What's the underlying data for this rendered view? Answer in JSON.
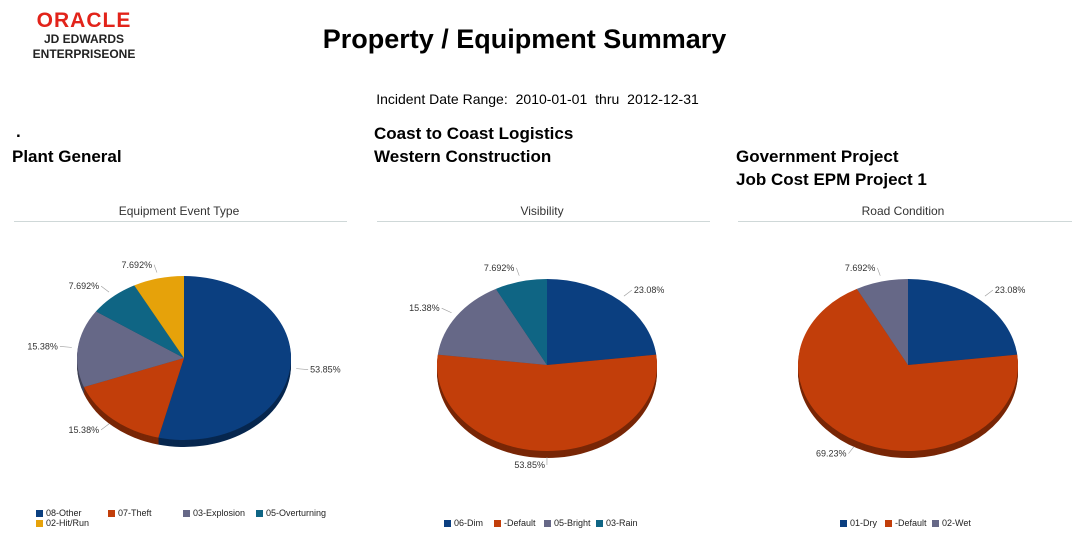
{
  "logo": {
    "brand": "ORACLE",
    "line1": "JD EDWARDS",
    "line2": "ENTERPRISEONE"
  },
  "title": "Property / Equipment Summary",
  "date_range": {
    "label": "Incident Date Range:",
    "from": "2010-01-01",
    "thru_label": "thru",
    "to": "2012-12-31"
  },
  "columns": [
    {
      "lines": [
        ".",
        "Plant General"
      ]
    },
    {
      "lines": [
        "Coast to Coast Logistics",
        "Western Construction"
      ]
    },
    {
      "lines": [
        "Government Project",
        "Job Cost EPM Project 1"
      ]
    }
  ],
  "colors": {
    "blue": "#0b3f80",
    "orange": "#c23e0a",
    "purple": "#666887",
    "teal": "#0f6584",
    "gold": "#e6a20a"
  },
  "chart_data": [
    {
      "type": "pie",
      "title": "Equipment Event Type",
      "slices": [
        {
          "name": "08-Other",
          "value": 53.85,
          "label": "53.85%",
          "color": "#0b3f80"
        },
        {
          "name": "07-Theft",
          "value": 15.38,
          "label": "15.38%",
          "color": "#c23e0a"
        },
        {
          "name": "03-Explosion",
          "value": 15.38,
          "label": "15.38%",
          "color": "#666887"
        },
        {
          "name": "05-Overturning",
          "value": 7.692,
          "label": "7.692%",
          "color": "#0f6584"
        },
        {
          "name": "02-Hit/Run",
          "value": 7.692,
          "label": "7.692%",
          "color": "#e6a20a"
        }
      ]
    },
    {
      "type": "pie",
      "title": "Visibility",
      "slices": [
        {
          "name": "06-Dim",
          "value": 23.08,
          "label": "23.08%",
          "color": "#0b3f80"
        },
        {
          "name": "-Default",
          "value": 53.85,
          "label": "53.85%",
          "color": "#c23e0a"
        },
        {
          "name": "05-Bright",
          "value": 15.38,
          "label": "15.38%",
          "color": "#666887"
        },
        {
          "name": "03-Rain",
          "value": 7.692,
          "label": "7.692%",
          "color": "#0f6584"
        }
      ]
    },
    {
      "type": "pie",
      "title": "Road Condition",
      "slices": [
        {
          "name": "01-Dry",
          "value": 23.08,
          "label": "23.08%",
          "color": "#0b3f80"
        },
        {
          "name": "-Default",
          "value": 69.23,
          "label": "69.23%",
          "color": "#c23e0a"
        },
        {
          "name": "02-Wet",
          "value": 7.692,
          "label": "7.692%",
          "color": "#666887"
        }
      ]
    }
  ]
}
